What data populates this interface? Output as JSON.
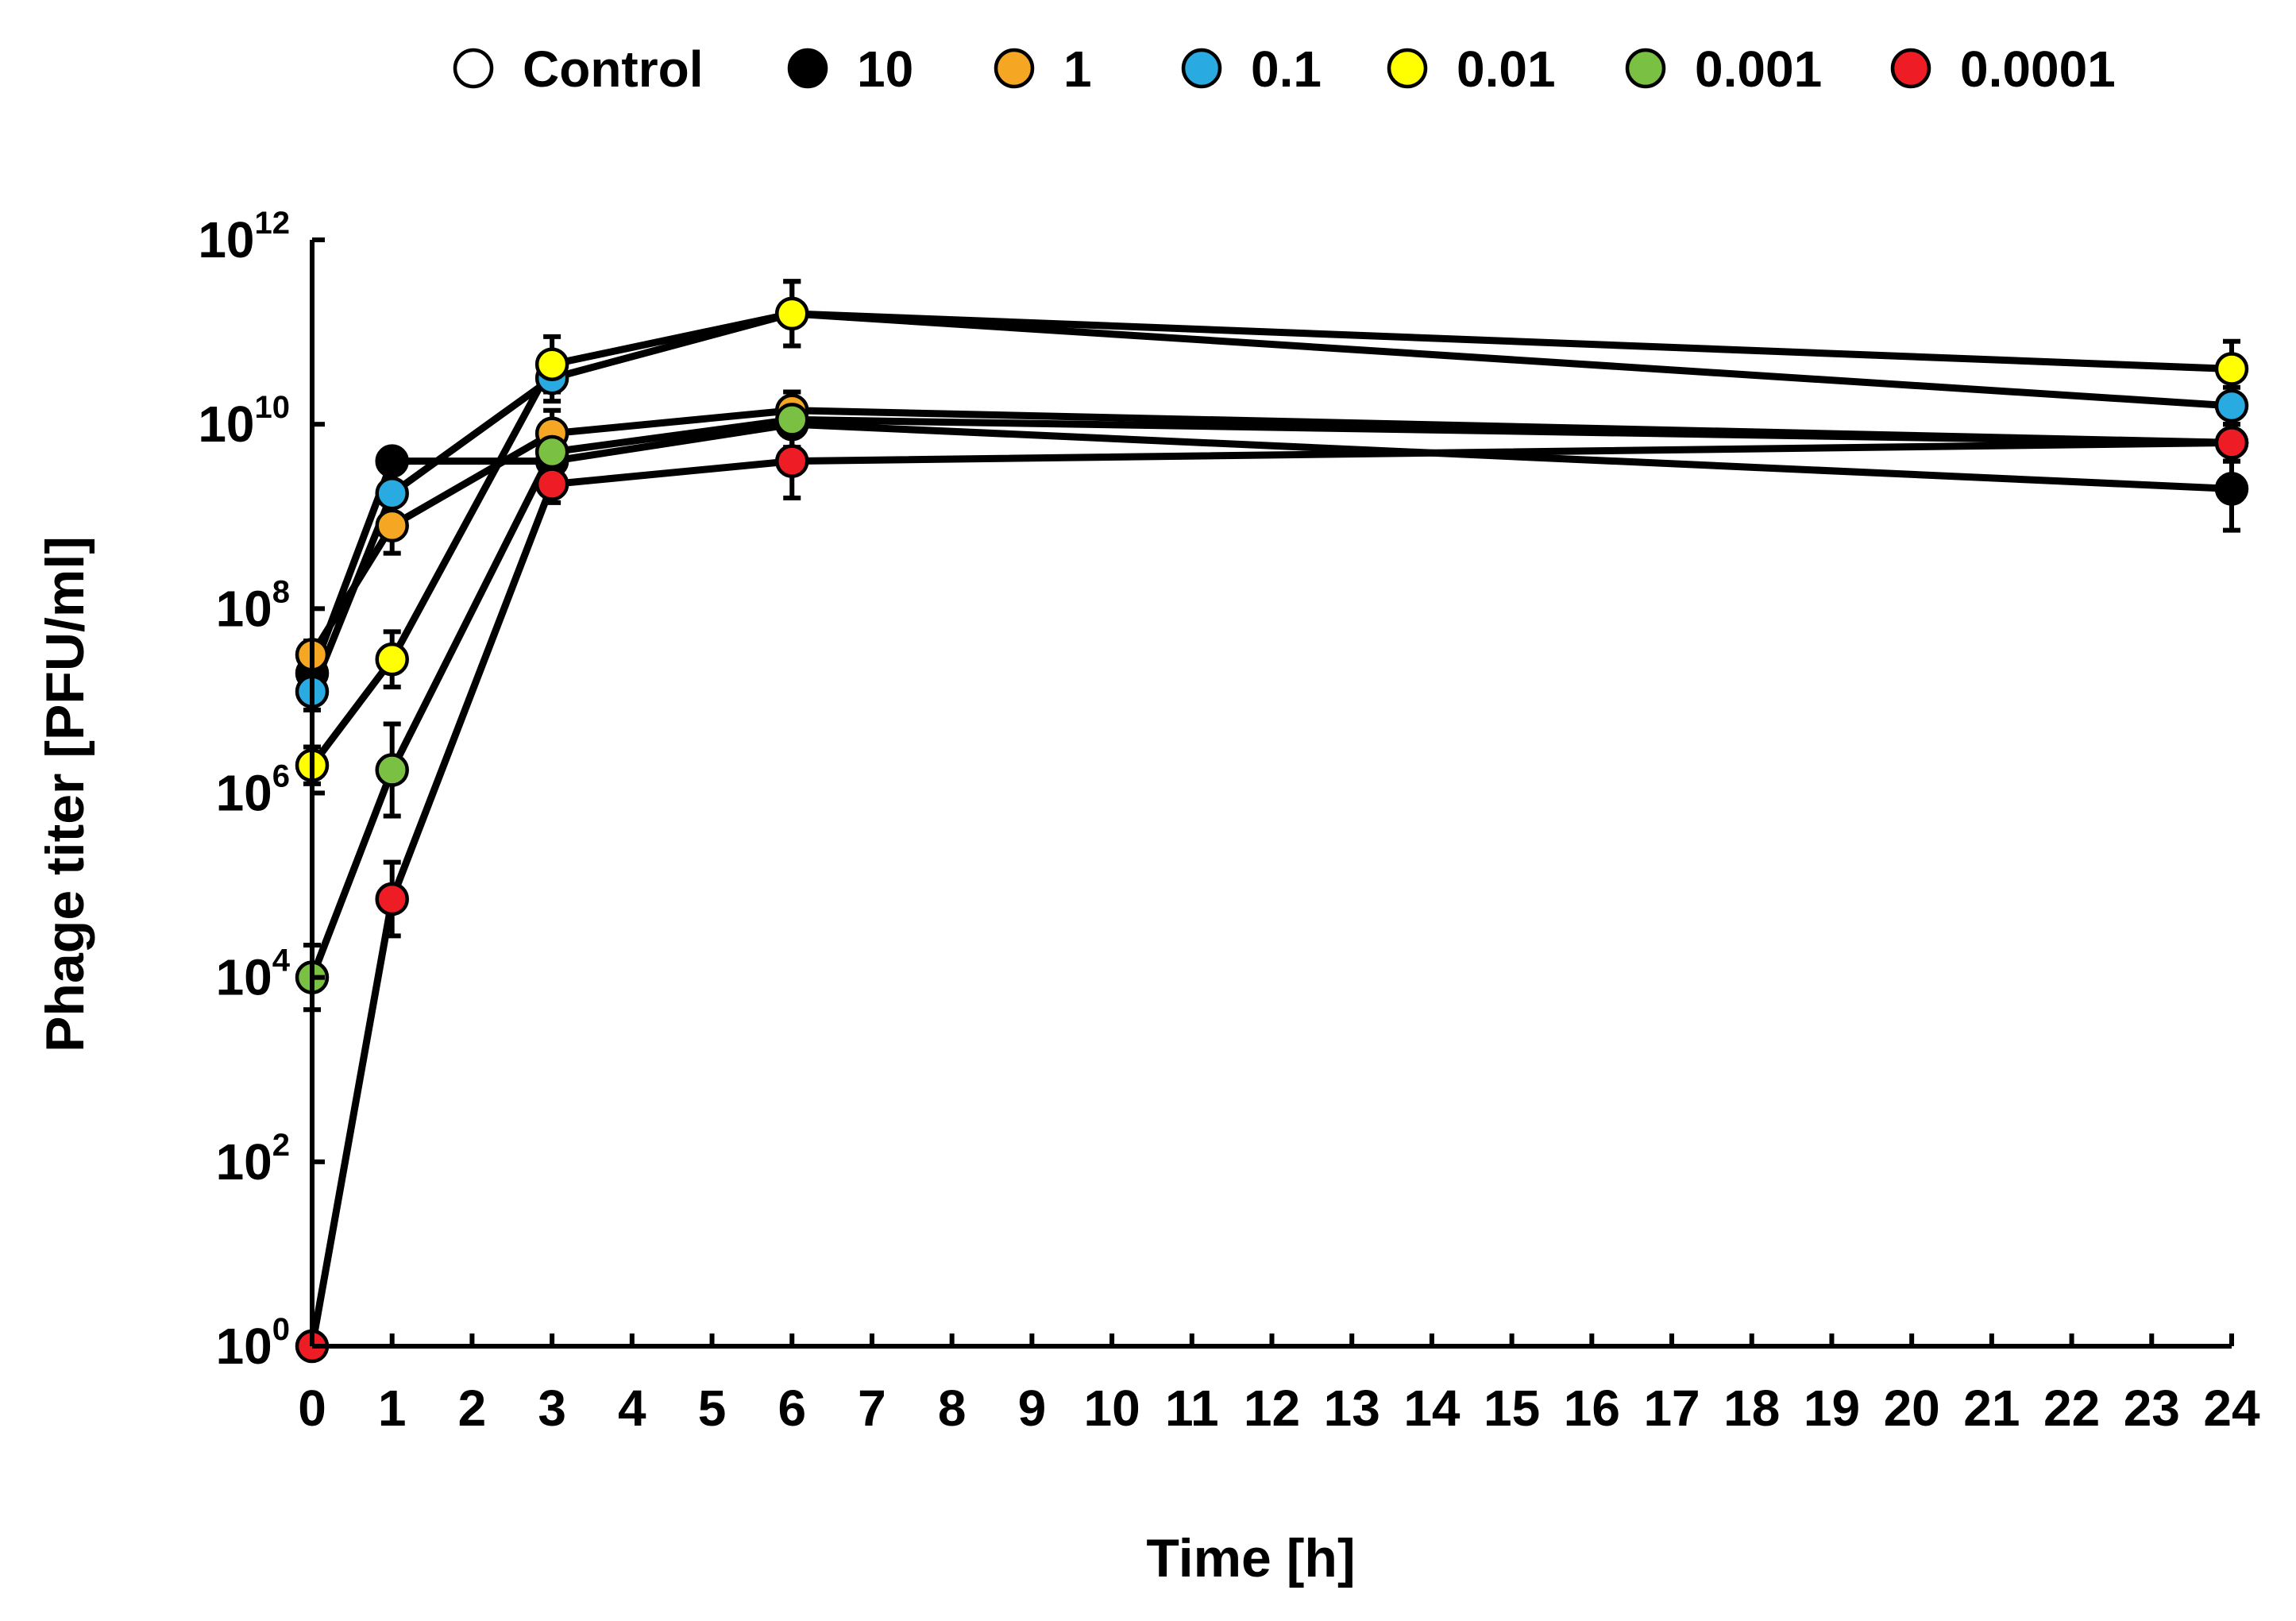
{
  "chart_data": {
    "type": "line",
    "title": "",
    "xlabel": "Time [h]",
    "ylabel": "Phage titer [PFU/ml]",
    "xlim": [
      0,
      24
    ],
    "ylim_log10": [
      0,
      12
    ],
    "y_scale": "log10",
    "x": [
      0,
      1,
      3,
      6,
      24
    ],
    "x_tick_labels": [
      "0",
      "1",
      "2",
      "3",
      "4",
      "5",
      "6",
      "7",
      "8",
      "9",
      "10",
      "11",
      "12",
      "13",
      "14",
      "15",
      "16",
      "17",
      "18",
      "19",
      "20",
      "21",
      "22",
      "23",
      "24"
    ],
    "y_ticks": [
      {
        "base": "10",
        "exp": "0",
        "log10": 0
      },
      {
        "base": "10",
        "exp": "2",
        "log10": 2
      },
      {
        "base": "10",
        "exp": "4",
        "log10": 4
      },
      {
        "base": "10",
        "exp": "6",
        "log10": 6
      },
      {
        "base": "10",
        "exp": "8",
        "log10": 8
      },
      {
        "base": "10",
        "exp": "10",
        "log10": 10
      },
      {
        "base": "10",
        "exp": "12",
        "log10": 12
      }
    ],
    "legend_position": "top",
    "series": [
      {
        "name": "Control",
        "color": "#ffffff",
        "values_log10": [],
        "err_log10": []
      },
      {
        "name": "10",
        "color": "#000000",
        "values_log10": [
          7.3,
          9.6,
          9.6,
          10.0,
          9.3
        ],
        "err_log10": [
          0.15,
          0.12,
          0.2,
          0.25,
          0.45
        ]
      },
      {
        "name": "1",
        "color": "#f5a623",
        "values_log10": [
          7.5,
          8.9,
          9.9,
          10.15,
          9.8
        ],
        "err_log10": [
          0.15,
          0.3,
          0.25,
          0.2,
          0.2
        ]
      },
      {
        "name": "0.1",
        "color": "#29abe2",
        "values_log10": [
          7.1,
          9.25,
          10.5,
          11.2,
          10.2
        ],
        "err_log10": [
          0.2,
          0.3,
          0.25,
          0.35,
          0.2
        ]
      },
      {
        "name": "0.01",
        "color": "#ffff00",
        "values_log10": [
          6.3,
          7.45,
          10.65,
          11.2,
          10.6
        ],
        "err_log10": [
          0.2,
          0.3,
          0.3,
          0.35,
          0.3
        ]
      },
      {
        "name": "0.001",
        "color": "#7ac143",
        "values_log10": [
          4.0,
          6.25,
          9.7,
          10.05,
          9.8
        ],
        "err_log10": [
          0.35,
          0.5,
          0.3,
          0.3,
          0.2
        ]
      },
      {
        "name": "0.0001",
        "color": "#ee1c25",
        "values_log10": [
          0.0,
          4.85,
          9.35,
          9.6,
          9.8
        ],
        "err_log10": [
          0.05,
          0.4,
          0.2,
          0.4,
          0.2
        ]
      }
    ]
  }
}
